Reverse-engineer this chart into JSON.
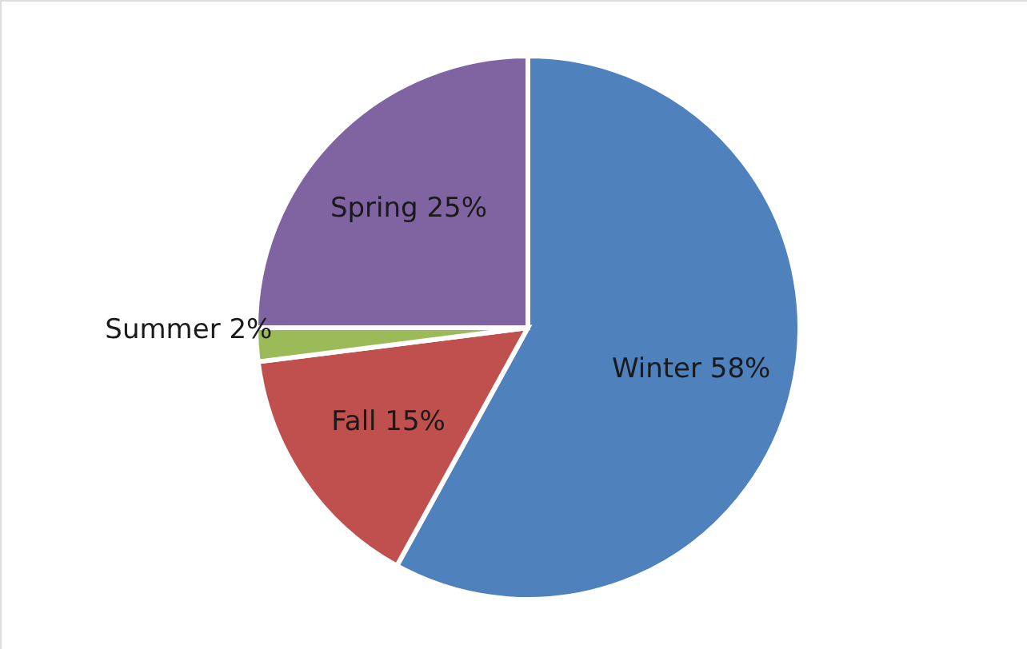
{
  "chart_data": {
    "type": "pie",
    "categories": [
      "Winter",
      "Fall",
      "Summer",
      "Spring"
    ],
    "values": [
      58,
      15,
      2,
      25
    ],
    "colors": [
      "#4f81bd",
      "#c0504d",
      "#9bbb59",
      "#8064a2"
    ],
    "value_labels": [
      "58%",
      "15%",
      "2%",
      "25%"
    ]
  }
}
